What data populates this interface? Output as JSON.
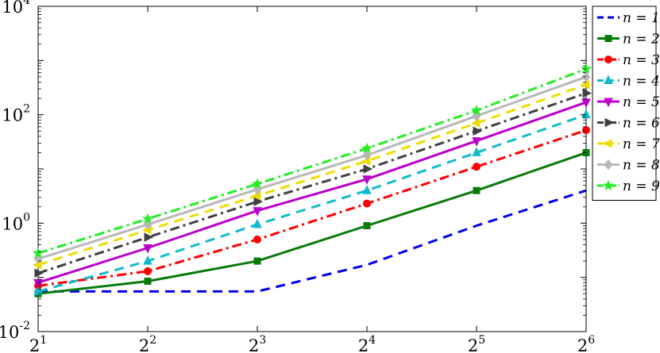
{
  "chart_data": {
    "type": "line",
    "title": "",
    "xlabel": "",
    "ylabel": "",
    "x_scale": "log2",
    "y_scale": "log10",
    "xlim": [
      2,
      64
    ],
    "ylim": [
      0.01,
      10000
    ],
    "grid": false,
    "legend_position": "right-outside",
    "x": [
      2,
      4,
      8,
      16,
      32,
      64
    ],
    "x_tick_labels": [
      {
        "base": "2",
        "exp": "1"
      },
      {
        "base": "2",
        "exp": "2"
      },
      {
        "base": "2",
        "exp": "3"
      },
      {
        "base": "2",
        "exp": "4"
      },
      {
        "base": "2",
        "exp": "5"
      },
      {
        "base": "2",
        "exp": "6"
      }
    ],
    "y_tick_labels": [
      {
        "base": "10",
        "exp": "-2",
        "value": 0.01
      },
      {
        "base": "10",
        "exp": "0",
        "value": 1
      },
      {
        "base": "10",
        "exp": "2",
        "value": 100
      },
      {
        "base": "10",
        "exp": "4",
        "value": 10000
      }
    ],
    "series": [
      {
        "name": "n = 1",
        "color": "#0000ee",
        "dash": "dash",
        "marker": "none",
        "values": [
          0.055,
          0.055,
          0.055,
          0.17,
          0.9,
          4.0
        ]
      },
      {
        "name": "n = 2",
        "color": "#0a7a0a",
        "dash": "solid",
        "marker": "square",
        "values": [
          0.05,
          0.085,
          0.2,
          0.9,
          4.0,
          20
        ]
      },
      {
        "name": "n = 3",
        "color": "#ff0000",
        "dash": "dashdot",
        "marker": "circle",
        "values": [
          0.07,
          0.13,
          0.5,
          2.3,
          11,
          52
        ]
      },
      {
        "name": "n = 4",
        "color": "#11bbcc",
        "dash": "dash",
        "marker": "triangle-up",
        "values": [
          0.055,
          0.2,
          0.95,
          4.0,
          20,
          100
        ]
      },
      {
        "name": "n = 5",
        "color": "#bb00cc",
        "dash": "solid",
        "marker": "triangle-down",
        "values": [
          0.08,
          0.35,
          1.7,
          6.5,
          33,
          170
        ]
      },
      {
        "name": "n = 6",
        "color": "#404040",
        "dash": "dashdot",
        "marker": "triangle-right",
        "values": [
          0.12,
          0.55,
          2.5,
          10,
          50,
          250
        ]
      },
      {
        "name": "n = 7",
        "color": "#eedd00",
        "dash": "dash",
        "marker": "triangle-left",
        "values": [
          0.17,
          0.75,
          3.2,
          14,
          70,
          360
        ]
      },
      {
        "name": "n = 8",
        "color": "#b8b8b8",
        "dash": "solid",
        "marker": "diamond",
        "values": [
          0.22,
          0.95,
          4.2,
          18,
          95,
          500
        ]
      },
      {
        "name": "n = 9",
        "color": "#22ee22",
        "dash": "dashdot",
        "marker": "star",
        "values": [
          0.28,
          1.2,
          5.3,
          24,
          120,
          700
        ]
      }
    ]
  }
}
